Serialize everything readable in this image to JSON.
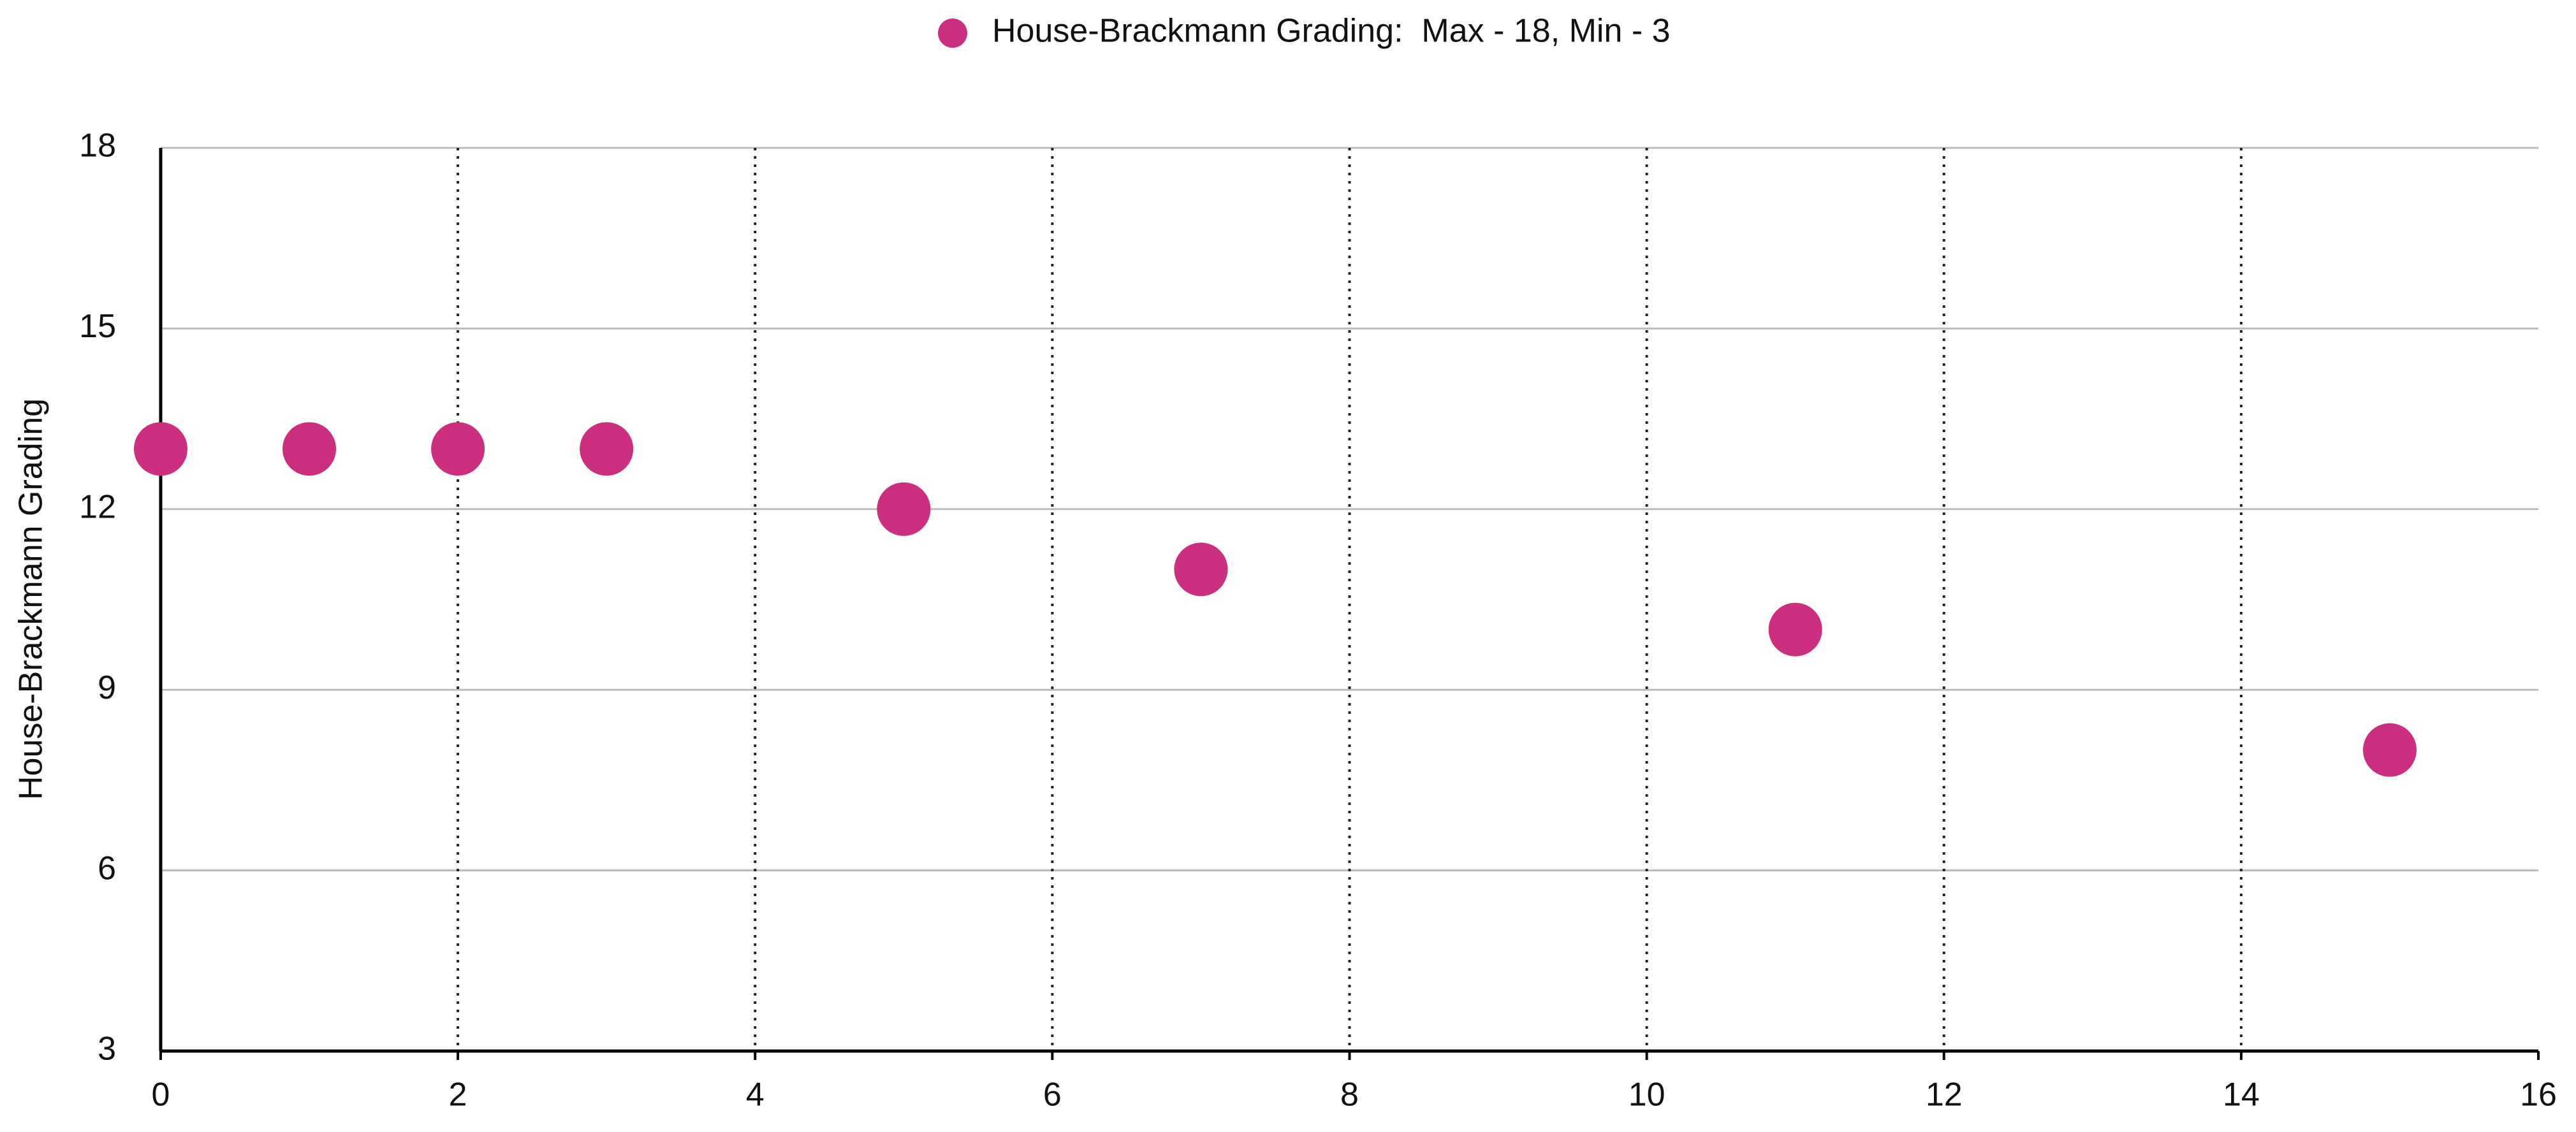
{
  "chart_data": {
    "type": "scatter",
    "y_label": "House-Brackmann Grading",
    "series": [
      {
        "name": "House-Brackmann Grading:  Max - 18, Min - 3",
        "color": "#cc2f80",
        "x": [
          0,
          1,
          2,
          3,
          5,
          7,
          11,
          15
        ],
        "values": [
          13,
          13,
          13,
          13,
          12,
          11,
          10,
          8
        ]
      }
    ],
    "xlim": [
      0,
      16
    ],
    "xticks": [
      0,
      2,
      4,
      6,
      8,
      10,
      12,
      14,
      16
    ],
    "ylim": [
      3,
      18
    ],
    "yticks": [
      3,
      6,
      9,
      12,
      15,
      18
    ],
    "grid": true,
    "legend": "top"
  }
}
